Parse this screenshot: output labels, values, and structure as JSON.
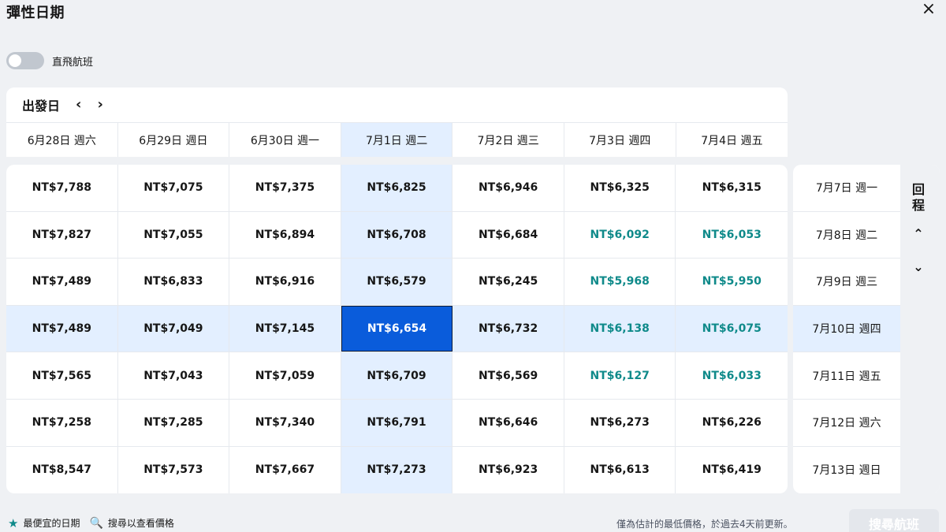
{
  "header": {
    "title": "彈性日期",
    "close_icon": "×"
  },
  "filter": {
    "direct_label": "直飛航班",
    "direct_enabled": false
  },
  "departure": {
    "label": "出發日",
    "prev_icon": "‹",
    "next_icon": "›",
    "dates": [
      "6月28日 週六",
      "6月29日 週日",
      "6月30日 週一",
      "7月1日 週二",
      "7月2日 週三",
      "7月3日 週四",
      "7月4日 週五"
    ],
    "selected_index": 3
  },
  "return": {
    "label": "回程",
    "up_icon": "⌃",
    "down_icon": "⌄",
    "dates": [
      "7月7日 週一",
      "7月8日 週二",
      "7月9日 週三",
      "7月10日 週四",
      "7月11日 週五",
      "7月12日 週六",
      "7月13日 週日"
    ],
    "selected_index": 3
  },
  "prices": [
    [
      "NT$7,788",
      "NT$7,075",
      "NT$7,375",
      "NT$6,825",
      "NT$6,946",
      "NT$6,325",
      "NT$6,315"
    ],
    [
      "NT$7,827",
      "NT$7,055",
      "NT$6,894",
      "NT$6,708",
      "NT$6,684",
      "NT$6,092",
      "NT$6,053"
    ],
    [
      "NT$7,489",
      "NT$6,833",
      "NT$6,916",
      "NT$6,579",
      "NT$6,245",
      "NT$5,968",
      "NT$5,950"
    ],
    [
      "NT$7,489",
      "NT$7,049",
      "NT$7,145",
      "NT$6,654",
      "NT$6,732",
      "NT$6,138",
      "NT$6,075"
    ],
    [
      "NT$7,565",
      "NT$7,043",
      "NT$7,059",
      "NT$6,709",
      "NT$6,569",
      "NT$6,127",
      "NT$6,033"
    ],
    [
      "NT$7,258",
      "NT$7,285",
      "NT$7,340",
      "NT$6,791",
      "NT$6,646",
      "NT$6,273",
      "NT$6,226"
    ],
    [
      "NT$8,547",
      "NT$7,573",
      "NT$7,667",
      "NT$7,273",
      "NT$6,923",
      "NT$6,613",
      "NT$6,419"
    ]
  ],
  "cheapest_cells": [
    [
      1,
      5
    ],
    [
      1,
      6
    ],
    [
      2,
      5
    ],
    [
      2,
      6
    ],
    [
      3,
      5
    ],
    [
      3,
      6
    ],
    [
      4,
      5
    ],
    [
      4,
      6
    ]
  ],
  "colors": {
    "cheapest": "#0f8a8a",
    "selected": "#0a5cdb",
    "highlight": "#e3efff"
  },
  "footer": {
    "star_icon": "★",
    "cheapest_label": "最便宜的日期",
    "search_icon": "🔍",
    "search_hint": "搜尋以查看價格",
    "update_note": "僅為估計的最低價格，於過去4天前更新。",
    "search_button": "搜尋航班"
  }
}
